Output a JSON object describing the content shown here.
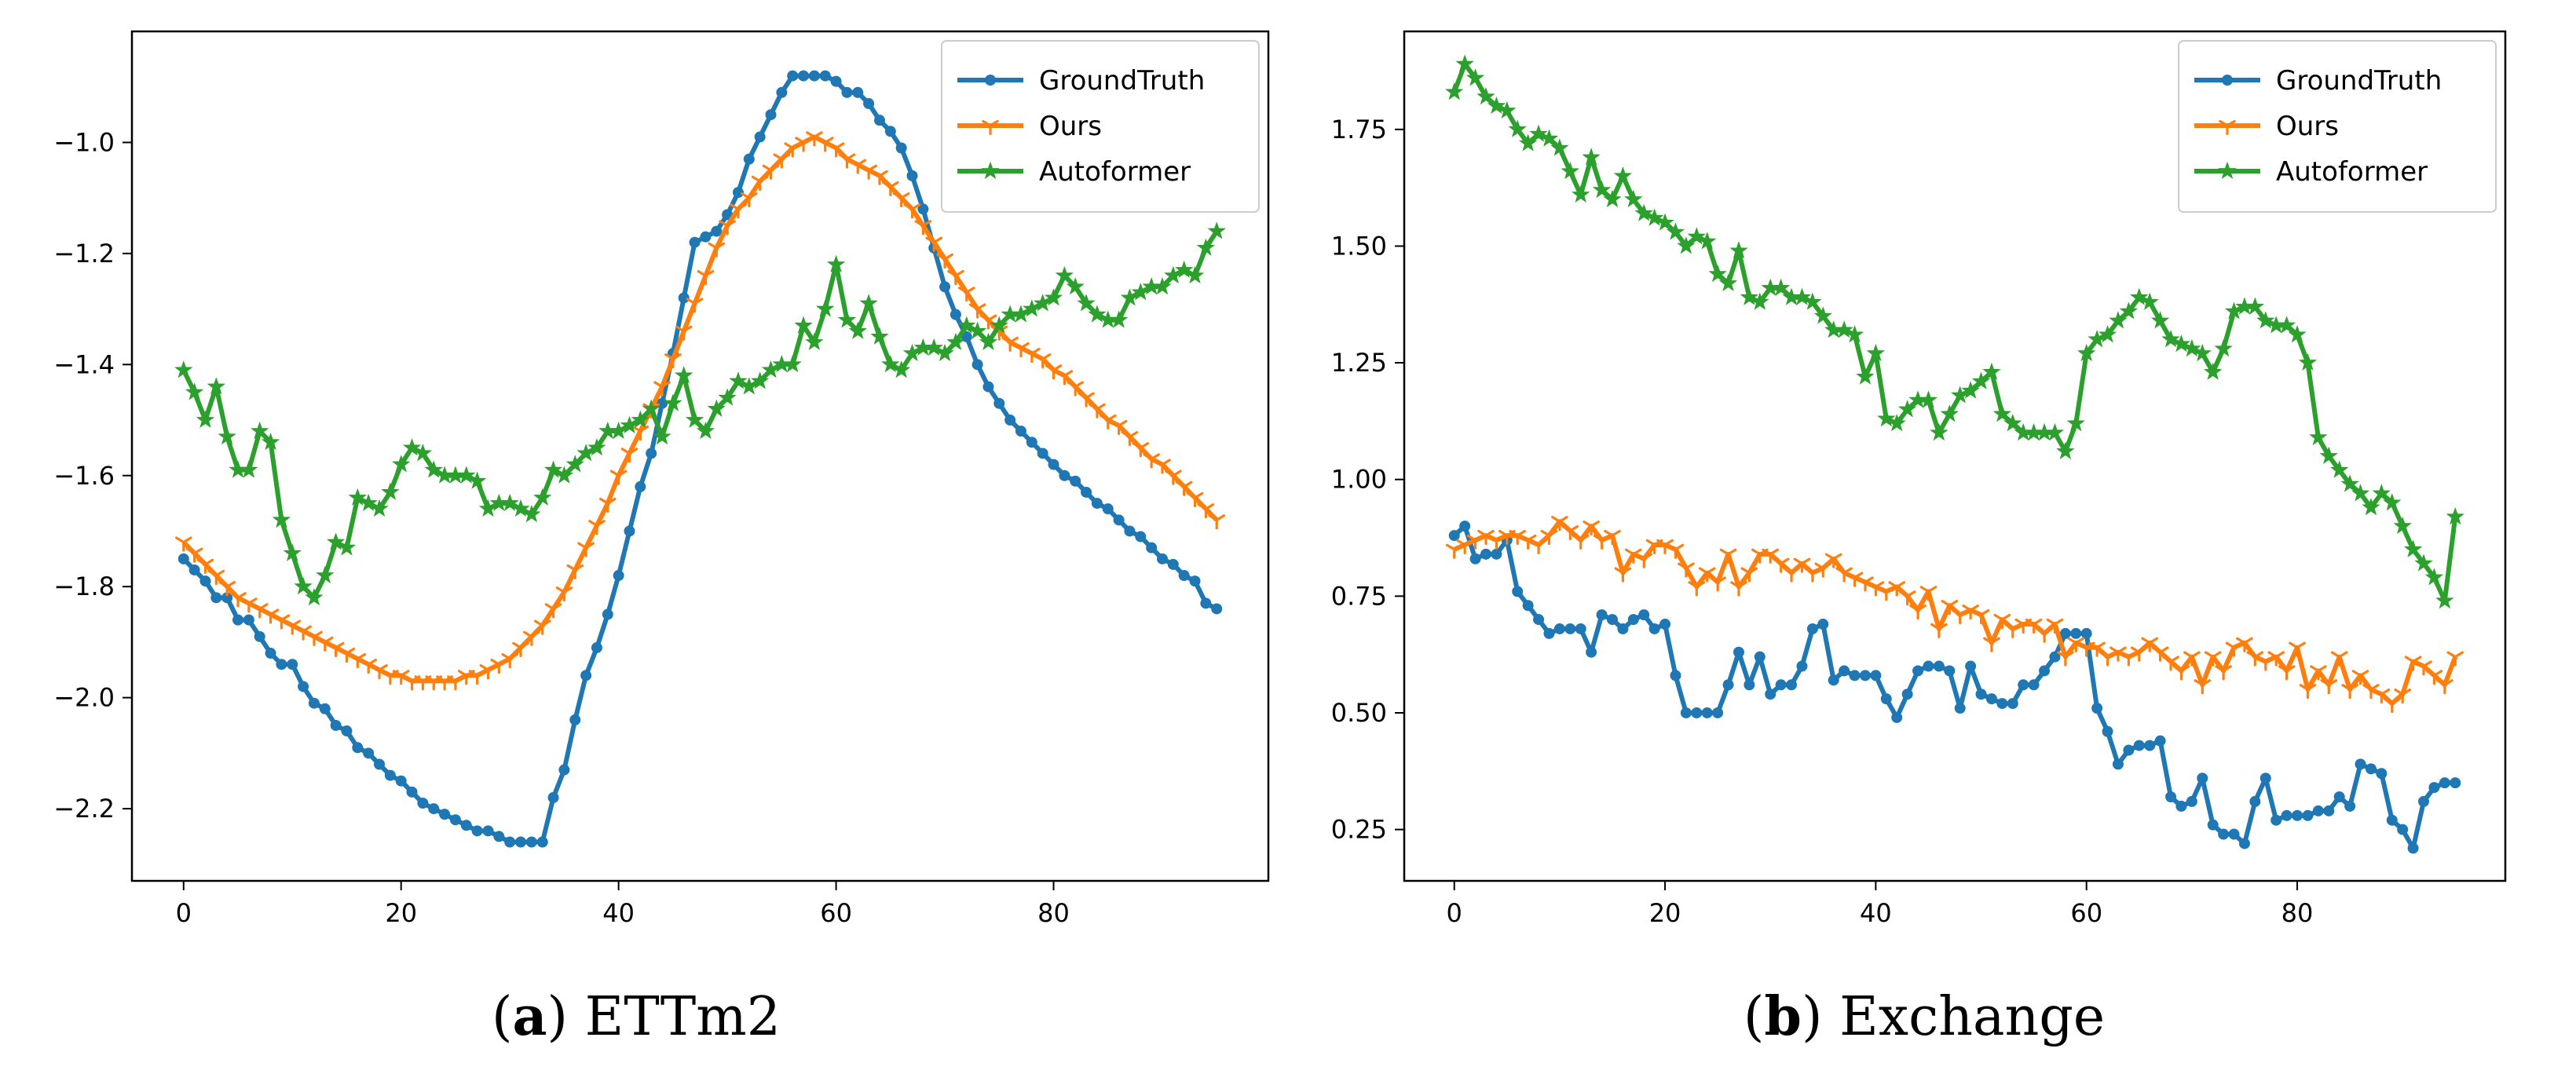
{
  "colors": {
    "GroundTruth": "#1f77b4",
    "Ours": "#ff7f0e",
    "Autoformer": "#2ca02c"
  },
  "chart_data": [
    {
      "type": "line",
      "caption_letter": "a",
      "caption_text": " ETTm2",
      "title": "",
      "xlabel": "",
      "ylabel": "",
      "xlim": [
        -4.75,
        99.75
      ],
      "ylim": [
        -2.33,
        -0.8
      ],
      "xticks": [
        0,
        20,
        40,
        60,
        80
      ],
      "yticks": [
        -1.0,
        -1.2,
        -1.4,
        -1.6,
        -1.8,
        -2.0,
        -2.2
      ],
      "ytick_labels": [
        "−1.0",
        "−1.2",
        "−1.4",
        "−1.6",
        "−1.8",
        "−2.0",
        "−2.2"
      ],
      "legend_position": "top-right",
      "series": [
        {
          "name": "GroundTruth",
          "marker": "circle",
          "values": [
            -1.75,
            -1.77,
            -1.79,
            -1.82,
            -1.82,
            -1.86,
            -1.86,
            -1.89,
            -1.92,
            -1.94,
            -1.94,
            -1.98,
            -2.01,
            -2.02,
            -2.05,
            -2.06,
            -2.09,
            -2.1,
            -2.12,
            -2.14,
            -2.15,
            -2.17,
            -2.19,
            -2.2,
            -2.21,
            -2.22,
            -2.23,
            -2.24,
            -2.24,
            -2.25,
            -2.26,
            -2.26,
            -2.26,
            -2.26,
            -2.18,
            -2.13,
            -2.04,
            -1.96,
            -1.91,
            -1.85,
            -1.78,
            -1.7,
            -1.62,
            -1.56,
            -1.47,
            -1.38,
            -1.28,
            -1.18,
            -1.17,
            -1.16,
            -1.13,
            -1.09,
            -1.03,
            -0.99,
            -0.95,
            -0.91,
            -0.88,
            -0.88,
            -0.88,
            -0.88,
            -0.89,
            -0.91,
            -0.91,
            -0.93,
            -0.96,
            -0.98,
            -1.01,
            -1.06,
            -1.12,
            -1.19,
            -1.26,
            -1.31,
            -1.35,
            -1.4,
            -1.44,
            -1.47,
            -1.5,
            -1.52,
            -1.54,
            -1.56,
            -1.58,
            -1.6,
            -1.61,
            -1.63,
            -1.65,
            -1.66,
            -1.68,
            -1.7,
            -1.71,
            -1.73,
            -1.75,
            -1.76,
            -1.78,
            -1.79,
            -1.83,
            -1.84
          ]
        },
        {
          "name": "Ours",
          "marker": "tri",
          "values": [
            -1.72,
            -1.74,
            -1.76,
            -1.78,
            -1.8,
            -1.82,
            -1.83,
            -1.84,
            -1.85,
            -1.86,
            -1.87,
            -1.88,
            -1.89,
            -1.9,
            -1.91,
            -1.92,
            -1.93,
            -1.94,
            -1.95,
            -1.96,
            -1.96,
            -1.97,
            -1.97,
            -1.97,
            -1.97,
            -1.97,
            -1.96,
            -1.96,
            -1.95,
            -1.94,
            -1.93,
            -1.91,
            -1.89,
            -1.87,
            -1.84,
            -1.81,
            -1.77,
            -1.73,
            -1.69,
            -1.65,
            -1.6,
            -1.56,
            -1.52,
            -1.48,
            -1.44,
            -1.39,
            -1.34,
            -1.29,
            -1.24,
            -1.19,
            -1.15,
            -1.12,
            -1.1,
            -1.07,
            -1.05,
            -1.03,
            -1.01,
            -1.0,
            -0.99,
            -1.0,
            -1.01,
            -1.03,
            -1.04,
            -1.05,
            -1.06,
            -1.08,
            -1.1,
            -1.12,
            -1.15,
            -1.18,
            -1.21,
            -1.24,
            -1.27,
            -1.3,
            -1.32,
            -1.34,
            -1.36,
            -1.37,
            -1.38,
            -1.39,
            -1.41,
            -1.42,
            -1.44,
            -1.46,
            -1.48,
            -1.5,
            -1.51,
            -1.53,
            -1.55,
            -1.57,
            -1.58,
            -1.6,
            -1.62,
            -1.64,
            -1.66,
            -1.68
          ]
        },
        {
          "name": "Autoformer",
          "marker": "star",
          "values": [
            -1.41,
            -1.45,
            -1.5,
            -1.44,
            -1.53,
            -1.59,
            -1.59,
            -1.52,
            -1.54,
            -1.68,
            -1.74,
            -1.8,
            -1.82,
            -1.78,
            -1.72,
            -1.73,
            -1.64,
            -1.65,
            -1.66,
            -1.63,
            -1.58,
            -1.55,
            -1.56,
            -1.59,
            -1.6,
            -1.6,
            -1.6,
            -1.61,
            -1.66,
            -1.65,
            -1.65,
            -1.66,
            -1.67,
            -1.64,
            -1.59,
            -1.6,
            -1.58,
            -1.56,
            -1.55,
            -1.52,
            -1.52,
            -1.51,
            -1.5,
            -1.48,
            -1.53,
            -1.47,
            -1.42,
            -1.5,
            -1.52,
            -1.48,
            -1.46,
            -1.43,
            -1.44,
            -1.43,
            -1.41,
            -1.4,
            -1.4,
            -1.33,
            -1.36,
            -1.3,
            -1.22,
            -1.32,
            -1.34,
            -1.29,
            -1.35,
            -1.4,
            -1.41,
            -1.38,
            -1.37,
            -1.37,
            -1.38,
            -1.36,
            -1.33,
            -1.34,
            -1.36,
            -1.33,
            -1.31,
            -1.31,
            -1.3,
            -1.29,
            -1.28,
            -1.24,
            -1.26,
            -1.29,
            -1.31,
            -1.32,
            -1.32,
            -1.28,
            -1.27,
            -1.26,
            -1.26,
            -1.24,
            -1.23,
            -1.24,
            -1.19,
            -1.16
          ]
        }
      ]
    },
    {
      "type": "line",
      "caption_letter": "b",
      "caption_text": " Exchange",
      "title": "",
      "xlabel": "",
      "ylabel": "",
      "xlim": [
        -4.75,
        99.75
      ],
      "ylim": [
        0.14,
        1.96
      ],
      "xticks": [
        0,
        20,
        40,
        60,
        80
      ],
      "yticks": [
        1.75,
        1.5,
        1.25,
        1.0,
        0.75,
        0.5,
        0.25
      ],
      "ytick_labels": [
        "1.75",
        "1.50",
        "1.25",
        "1.00",
        "0.75",
        "0.50",
        "0.25"
      ],
      "legend_position": "top-right",
      "series": [
        {
          "name": "GroundTruth",
          "marker": "circle",
          "values": [
            0.88,
            0.9,
            0.83,
            0.84,
            0.84,
            0.87,
            0.76,
            0.73,
            0.7,
            0.67,
            0.68,
            0.68,
            0.68,
            0.63,
            0.71,
            0.7,
            0.68,
            0.7,
            0.71,
            0.68,
            0.69,
            0.58,
            0.5,
            0.5,
            0.5,
            0.5,
            0.56,
            0.63,
            0.56,
            0.62,
            0.54,
            0.56,
            0.56,
            0.6,
            0.68,
            0.69,
            0.57,
            0.59,
            0.58,
            0.58,
            0.58,
            0.53,
            0.49,
            0.54,
            0.59,
            0.6,
            0.6,
            0.59,
            0.51,
            0.6,
            0.54,
            0.53,
            0.52,
            0.52,
            0.56,
            0.56,
            0.59,
            0.62,
            0.67,
            0.67,
            0.67,
            0.51,
            0.46,
            0.39,
            0.42,
            0.43,
            0.43,
            0.44,
            0.32,
            0.3,
            0.31,
            0.36,
            0.26,
            0.24,
            0.24,
            0.22,
            0.31,
            0.36,
            0.27,
            0.28,
            0.28,
            0.28,
            0.29,
            0.29,
            0.32,
            0.3,
            0.39,
            0.38,
            0.37,
            0.27,
            0.25,
            0.21,
            0.31,
            0.34,
            0.35,
            0.35
          ]
        },
        {
          "name": "Ours",
          "marker": "tri",
          "values": [
            0.85,
            0.86,
            0.87,
            0.88,
            0.87,
            0.88,
            0.88,
            0.87,
            0.86,
            0.88,
            0.91,
            0.89,
            0.87,
            0.9,
            0.87,
            0.88,
            0.8,
            0.84,
            0.83,
            0.86,
            0.86,
            0.85,
            0.81,
            0.77,
            0.8,
            0.78,
            0.84,
            0.77,
            0.8,
            0.84,
            0.84,
            0.82,
            0.8,
            0.82,
            0.8,
            0.81,
            0.83,
            0.8,
            0.79,
            0.78,
            0.77,
            0.76,
            0.77,
            0.75,
            0.72,
            0.76,
            0.68,
            0.73,
            0.71,
            0.72,
            0.71,
            0.65,
            0.7,
            0.68,
            0.69,
            0.69,
            0.67,
            0.69,
            0.62,
            0.65,
            0.64,
            0.64,
            0.62,
            0.63,
            0.62,
            0.63,
            0.65,
            0.63,
            0.61,
            0.59,
            0.62,
            0.56,
            0.62,
            0.59,
            0.64,
            0.65,
            0.62,
            0.61,
            0.62,
            0.59,
            0.64,
            0.55,
            0.59,
            0.56,
            0.62,
            0.55,
            0.58,
            0.55,
            0.54,
            0.52,
            0.54,
            0.61,
            0.6,
            0.58,
            0.56,
            0.62
          ]
        },
        {
          "name": "Autoformer",
          "marker": "star",
          "values": [
            1.83,
            1.89,
            1.86,
            1.82,
            1.8,
            1.79,
            1.75,
            1.72,
            1.74,
            1.73,
            1.71,
            1.66,
            1.61,
            1.69,
            1.62,
            1.6,
            1.65,
            1.6,
            1.57,
            1.56,
            1.55,
            1.53,
            1.5,
            1.52,
            1.51,
            1.44,
            1.42,
            1.49,
            1.39,
            1.38,
            1.41,
            1.41,
            1.39,
            1.39,
            1.38,
            1.35,
            1.32,
            1.32,
            1.31,
            1.22,
            1.27,
            1.13,
            1.12,
            1.15,
            1.17,
            1.17,
            1.1,
            1.14,
            1.18,
            1.19,
            1.21,
            1.23,
            1.14,
            1.12,
            1.1,
            1.1,
            1.1,
            1.1,
            1.06,
            1.12,
            1.27,
            1.3,
            1.31,
            1.34,
            1.36,
            1.39,
            1.38,
            1.34,
            1.3,
            1.29,
            1.28,
            1.27,
            1.23,
            1.28,
            1.36,
            1.37,
            1.37,
            1.34,
            1.33,
            1.33,
            1.31,
            1.25,
            1.09,
            1.05,
            1.02,
            0.99,
            0.97,
            0.94,
            0.97,
            0.95,
            0.9,
            0.85,
            0.82,
            0.79,
            0.74,
            0.92
          ]
        }
      ]
    }
  ]
}
